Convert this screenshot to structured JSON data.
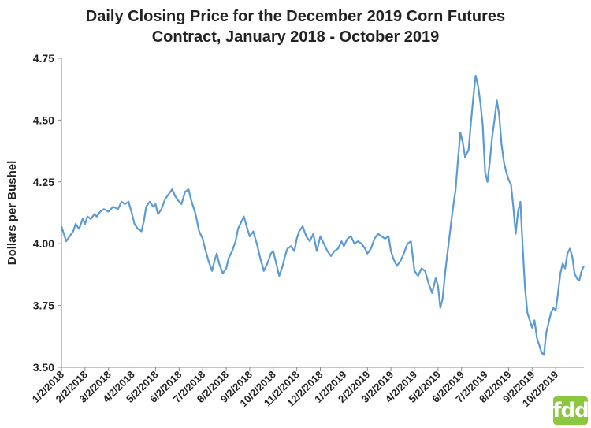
{
  "chart_data": {
    "type": "line",
    "title_lines": [
      "Daily Closing Price for the December 2019 Corn Futures",
      "Contract, January 2018 - October 2019"
    ],
    "xlabel": "",
    "ylabel": "Dollars per Bushel",
    "ylim": [
      3.5,
      4.75
    ],
    "yticks": [
      "3.50",
      "3.75",
      "4.00",
      "4.25",
      "4.50",
      "4.75"
    ],
    "x_tick_labels": [
      "1/2/2018",
      "2/2/2018",
      "3/2/2018",
      "4/2/2018",
      "5/2/2018",
      "6/2/2018",
      "7/2/2018",
      "8/2/2018",
      "9/2/2018",
      "10/2/2018",
      "11/2/2018",
      "12/2/2018",
      "1/2/2019",
      "2/2/2019",
      "3/2/2019",
      "4/2/2019",
      "5/2/2019",
      "6/2/2019",
      "7/2/2019",
      "8/2/2019",
      "9/2/2019",
      "10/2/2019"
    ],
    "grid": false,
    "line_color": "#5b9bd5",
    "points": [
      [
        0.0,
        4.07
      ],
      [
        0.1,
        4.04
      ],
      [
        0.2,
        4.01
      ],
      [
        0.35,
        4.03
      ],
      [
        0.5,
        4.05
      ],
      [
        0.6,
        4.08
      ],
      [
        0.75,
        4.06
      ],
      [
        0.9,
        4.1
      ],
      [
        1.0,
        4.08
      ],
      [
        1.1,
        4.11
      ],
      [
        1.25,
        4.1
      ],
      [
        1.4,
        4.12
      ],
      [
        1.5,
        4.11
      ],
      [
        1.65,
        4.13
      ],
      [
        1.8,
        4.14
      ],
      [
        2.0,
        4.13
      ],
      [
        2.2,
        4.15
      ],
      [
        2.4,
        4.14
      ],
      [
        2.55,
        4.17
      ],
      [
        2.7,
        4.16
      ],
      [
        2.85,
        4.17
      ],
      [
        3.0,
        4.12
      ],
      [
        3.1,
        4.08
      ],
      [
        3.25,
        4.06
      ],
      [
        3.4,
        4.05
      ],
      [
        3.5,
        4.09
      ],
      [
        3.6,
        4.15
      ],
      [
        3.75,
        4.17
      ],
      [
        3.9,
        4.15
      ],
      [
        4.0,
        4.16
      ],
      [
        4.1,
        4.12
      ],
      [
        4.25,
        4.14
      ],
      [
        4.4,
        4.18
      ],
      [
        4.55,
        4.2
      ],
      [
        4.7,
        4.22
      ],
      [
        4.85,
        4.19
      ],
      [
        5.0,
        4.17
      ],
      [
        5.1,
        4.16
      ],
      [
        5.25,
        4.21
      ],
      [
        5.4,
        4.22
      ],
      [
        5.5,
        4.18
      ],
      [
        5.6,
        4.15
      ],
      [
        5.7,
        4.12
      ],
      [
        5.85,
        4.05
      ],
      [
        6.0,
        4.02
      ],
      [
        6.1,
        3.98
      ],
      [
        6.25,
        3.93
      ],
      [
        6.4,
        3.89
      ],
      [
        6.5,
        3.93
      ],
      [
        6.6,
        3.96
      ],
      [
        6.7,
        3.92
      ],
      [
        6.85,
        3.88
      ],
      [
        7.0,
        3.9
      ],
      [
        7.1,
        3.94
      ],
      [
        7.25,
        3.97
      ],
      [
        7.4,
        4.01
      ],
      [
        7.5,
        4.06
      ],
      [
        7.6,
        4.08
      ],
      [
        7.75,
        4.11
      ],
      [
        7.9,
        4.06
      ],
      [
        8.0,
        4.03
      ],
      [
        8.15,
        4.05
      ],
      [
        8.3,
        4.0
      ],
      [
        8.45,
        3.94
      ],
      [
        8.6,
        3.89
      ],
      [
        8.75,
        3.92
      ],
      [
        8.9,
        3.96
      ],
      [
        9.0,
        3.97
      ],
      [
        9.1,
        3.93
      ],
      [
        9.25,
        3.87
      ],
      [
        9.4,
        3.91
      ],
      [
        9.5,
        3.95
      ],
      [
        9.6,
        3.98
      ],
      [
        9.75,
        3.99
      ],
      [
        9.9,
        3.97
      ],
      [
        10.0,
        4.02
      ],
      [
        10.1,
        4.05
      ],
      [
        10.25,
        4.07
      ],
      [
        10.4,
        4.03
      ],
      [
        10.55,
        4.01
      ],
      [
        10.7,
        4.04
      ],
      [
        10.85,
        3.97
      ],
      [
        11.0,
        4.03
      ],
      [
        11.15,
        4.0
      ],
      [
        11.3,
        3.97
      ],
      [
        11.45,
        3.95
      ],
      [
        11.6,
        3.97
      ],
      [
        11.75,
        3.98
      ],
      [
        11.9,
        4.01
      ],
      [
        12.0,
        3.99
      ],
      [
        12.15,
        4.02
      ],
      [
        12.3,
        4.03
      ],
      [
        12.45,
        4.0
      ],
      [
        12.6,
        4.01
      ],
      [
        12.75,
        4.0
      ],
      [
        12.9,
        3.98
      ],
      [
        13.0,
        3.96
      ],
      [
        13.15,
        3.98
      ],
      [
        13.3,
        4.02
      ],
      [
        13.45,
        4.04
      ],
      [
        13.6,
        4.03
      ],
      [
        13.75,
        4.02
      ],
      [
        13.9,
        4.03
      ],
      [
        14.0,
        3.97
      ],
      [
        14.1,
        3.94
      ],
      [
        14.25,
        3.91
      ],
      [
        14.4,
        3.93
      ],
      [
        14.55,
        3.96
      ],
      [
        14.7,
        4.0
      ],
      [
        14.85,
        4.01
      ],
      [
        15.0,
        3.89
      ],
      [
        15.15,
        3.87
      ],
      [
        15.3,
        3.9
      ],
      [
        15.45,
        3.89
      ],
      [
        15.6,
        3.84
      ],
      [
        15.75,
        3.8
      ],
      [
        15.9,
        3.86
      ],
      [
        16.0,
        3.83
      ],
      [
        16.1,
        3.74
      ],
      [
        16.2,
        3.78
      ],
      [
        16.3,
        3.88
      ],
      [
        16.45,
        4.0
      ],
      [
        16.6,
        4.12
      ],
      [
        16.75,
        4.22
      ],
      [
        16.85,
        4.34
      ],
      [
        16.95,
        4.45
      ],
      [
        17.05,
        4.41
      ],
      [
        17.15,
        4.35
      ],
      [
        17.3,
        4.38
      ],
      [
        17.4,
        4.49
      ],
      [
        17.5,
        4.59
      ],
      [
        17.6,
        4.68
      ],
      [
        17.7,
        4.64
      ],
      [
        17.8,
        4.57
      ],
      [
        17.9,
        4.48
      ],
      [
        18.0,
        4.29
      ],
      [
        18.1,
        4.25
      ],
      [
        18.2,
        4.33
      ],
      [
        18.3,
        4.43
      ],
      [
        18.4,
        4.5
      ],
      [
        18.5,
        4.58
      ],
      [
        18.6,
        4.52
      ],
      [
        18.7,
        4.4
      ],
      [
        18.8,
        4.33
      ],
      [
        18.9,
        4.29
      ],
      [
        19.0,
        4.26
      ],
      [
        19.1,
        4.24
      ],
      [
        19.2,
        4.15
      ],
      [
        19.3,
        4.04
      ],
      [
        19.4,
        4.13
      ],
      [
        19.5,
        4.17
      ],
      [
        19.6,
        3.98
      ],
      [
        19.7,
        3.82
      ],
      [
        19.8,
        3.72
      ],
      [
        19.9,
        3.69
      ],
      [
        20.0,
        3.66
      ],
      [
        20.1,
        3.69
      ],
      [
        20.2,
        3.62
      ],
      [
        20.3,
        3.59
      ],
      [
        20.4,
        3.56
      ],
      [
        20.5,
        3.55
      ],
      [
        20.6,
        3.64
      ],
      [
        20.7,
        3.68
      ],
      [
        20.8,
        3.72
      ],
      [
        20.9,
        3.74
      ],
      [
        21.0,
        3.73
      ],
      [
        21.1,
        3.8
      ],
      [
        21.2,
        3.88
      ],
      [
        21.3,
        3.92
      ],
      [
        21.4,
        3.9
      ],
      [
        21.5,
        3.96
      ],
      [
        21.6,
        3.98
      ],
      [
        21.7,
        3.95
      ],
      [
        21.8,
        3.88
      ],
      [
        21.9,
        3.86
      ],
      [
        22.0,
        3.85
      ],
      [
        22.1,
        3.89
      ],
      [
        22.2,
        3.91
      ]
    ]
  },
  "logo": {
    "text": "fdd",
    "color": "#8dc63f"
  }
}
